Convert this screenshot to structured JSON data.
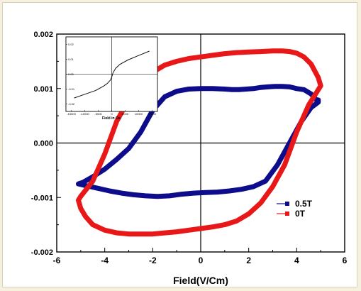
{
  "chart_data": {
    "type": "line",
    "title": "",
    "xlabel": "Field(V/Cm)",
    "ylabel": "",
    "xlim": [
      -6,
      6
    ],
    "ylim": [
      -0.002,
      0.002
    ],
    "xticks": [
      "-6",
      "-4",
      "-2",
      "0",
      "2",
      "4",
      "6"
    ],
    "yticks": [
      "0.002",
      "0.001",
      "0.000",
      "-0.001",
      "-0.002"
    ],
    "grid": false,
    "legend_position": "lower-right",
    "series": [
      {
        "name": "0.5T",
        "color": "#0d0d8c",
        "x": [
          -5.1,
          -4.8,
          -4.3,
          -3.8,
          -3.3,
          -2.8,
          -2.3,
          -1.8,
          -1.3,
          -0.8,
          -0.3,
          0.2,
          0.7,
          1.2,
          1.7,
          2.2,
          2.7,
          3.2,
          3.7,
          4.2,
          4.6,
          4.9,
          4.9,
          4.8,
          4.6,
          4.3,
          4.0,
          3.7,
          3.4,
          3.1,
          2.8,
          2.5,
          2.2,
          1.9,
          1.6,
          1.3,
          1.0,
          0.5,
          0.0,
          -0.5,
          -1.0,
          -1.5,
          -2.0,
          -2.5,
          -3.0,
          -3.5,
          -4.0,
          -4.5,
          -4.9,
          -5.1
        ],
        "y": [
          -0.00075,
          -0.00078,
          -0.00083,
          -0.00088,
          -0.00092,
          -0.00095,
          -0.00097,
          -0.00098,
          -0.00097,
          -0.00094,
          -0.00092,
          -0.00091,
          -0.0009,
          -0.00088,
          -0.00085,
          -0.0008,
          -0.0007,
          -0.0004,
          0.0,
          0.0004,
          0.00065,
          0.00075,
          0.00079,
          0.0008,
          0.0009,
          0.00098,
          0.001,
          0.00103,
          0.00104,
          0.00104,
          0.00103,
          0.00102,
          0.001,
          0.00099,
          0.00098,
          0.00098,
          0.00099,
          0.001,
          0.001,
          0.00099,
          0.00095,
          0.00085,
          0.0006,
          0.0002,
          -0.0001,
          -0.0003,
          -0.00048,
          -0.00062,
          -0.00072,
          -0.00075
        ]
      },
      {
        "name": "0T",
        "color": "#e81818",
        "x": [
          -5.1,
          -5.0,
          -4.8,
          -4.5,
          -4.0,
          -3.5,
          -3.0,
          -2.5,
          -2.0,
          -1.5,
          -1.0,
          -0.5,
          0.0,
          0.5,
          1.0,
          1.5,
          2.0,
          2.5,
          3.0,
          3.5,
          4.0,
          4.5,
          4.9,
          5.0,
          4.9,
          4.6,
          4.3,
          4.0,
          3.7,
          3.4,
          3.0,
          2.5,
          2.0,
          1.5,
          1.0,
          0.5,
          0.0,
          -0.5,
          -1.0,
          -1.5,
          -2.0,
          -2.5,
          -3.0,
          -3.5,
          -4.0,
          -4.5,
          -5.0,
          -5.1
        ],
        "y": [
          -0.00105,
          -0.0012,
          -0.00135,
          -0.0015,
          -0.0016,
          -0.00165,
          -0.00167,
          -0.00167,
          -0.00167,
          -0.00165,
          -0.00163,
          -0.0016,
          -0.00157,
          -0.00154,
          -0.0015,
          -0.00143,
          -0.0013,
          -0.0011,
          -0.0008,
          -0.0004,
          0.0002,
          0.0007,
          0.00098,
          0.00105,
          0.0012,
          0.00145,
          0.00158,
          0.00165,
          0.00168,
          0.00169,
          0.00169,
          0.00168,
          0.00167,
          0.00166,
          0.00164,
          0.00161,
          0.00158,
          0.00155,
          0.0015,
          0.00143,
          0.0013,
          0.0011,
          0.0008,
          0.0004,
          -0.0002,
          -0.0007,
          -0.00098,
          -0.00105
        ]
      }
    ],
    "inset": {
      "xlabel": "Field in Oe.",
      "xticks": [
        "-15000",
        "-10000",
        "-5000",
        "0",
        "5000",
        "10000",
        "15000"
      ],
      "yticks": [
        "0.02",
        "0.01",
        "0.00",
        "-0.01",
        "-0.02"
      ],
      "curve": {
        "x": [
          -14000,
          -10000,
          -6000,
          -3000,
          -1500,
          -500,
          0,
          500,
          1500,
          3000,
          6000,
          10000,
          14000
        ],
        "y": [
          -0.016,
          -0.0135,
          -0.011,
          -0.008,
          -0.006,
          -0.004,
          -0.002,
          0.001,
          0.004,
          0.0065,
          0.0095,
          0.0125,
          0.0155
        ]
      }
    }
  },
  "axis_label_x": "Field(V/Cm)",
  "legend": {
    "items": [
      {
        "label": "0.5T",
        "color": "#0d0d8c"
      },
      {
        "label": "0T",
        "color": "#e81818"
      }
    ]
  }
}
